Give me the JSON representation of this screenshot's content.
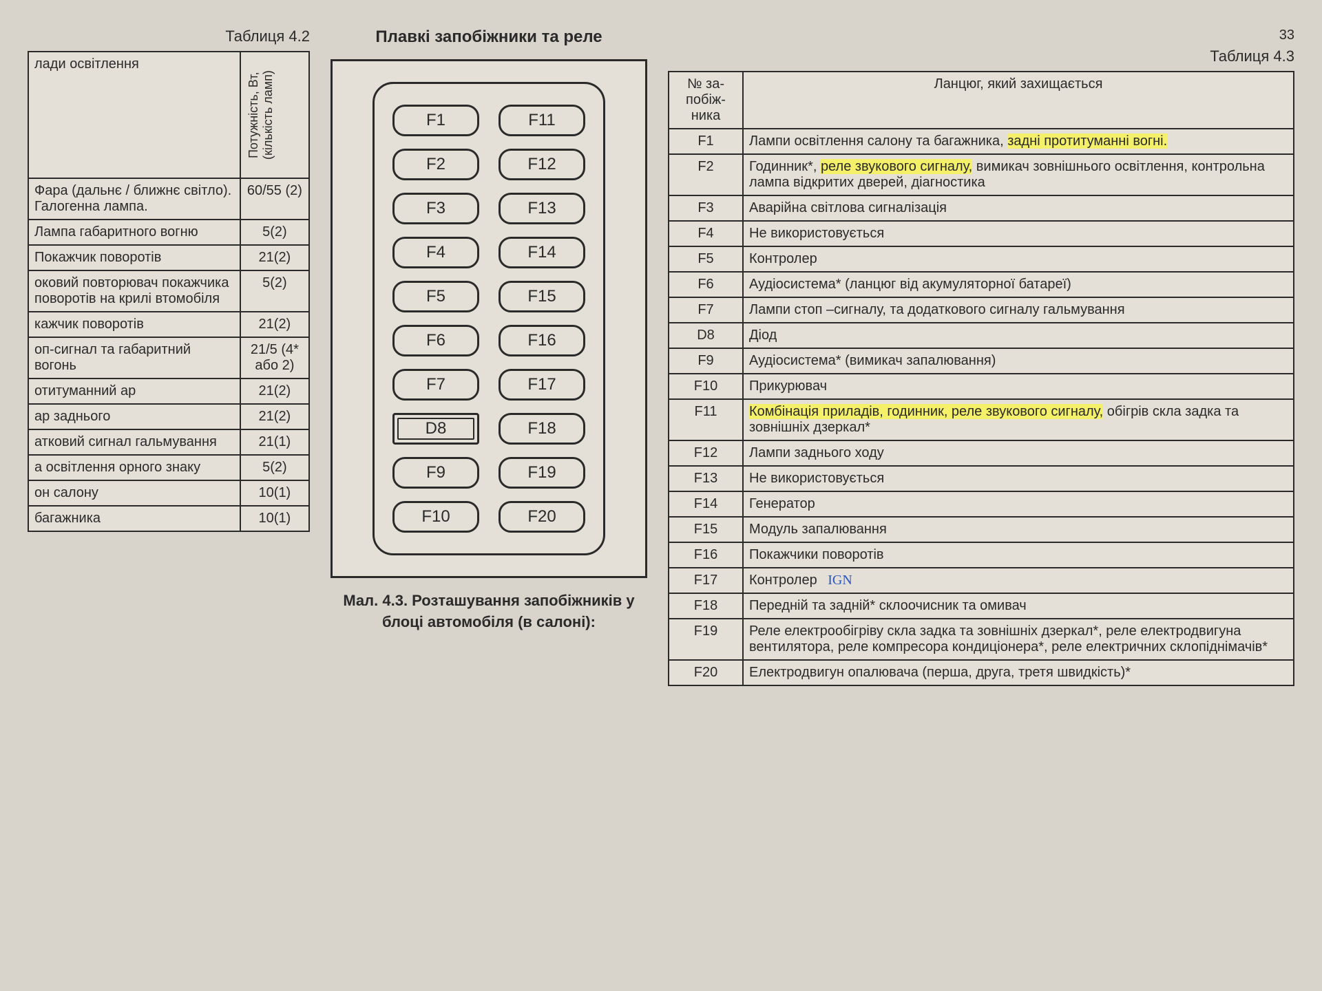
{
  "pageNumber": "33",
  "leftTable": {
    "label": "Таблиця 4.2",
    "header1": "лади освітлення",
    "header2": "Потужність, Вт, (кількість ламп)",
    "rows": [
      {
        "name": "Фара (дальнє / ближнє світло). Галогенна лампа.",
        "val": "60/55 (2)"
      },
      {
        "name": "Лампа габаритного вогню",
        "val": "5(2)"
      },
      {
        "name": "Покажчик поворотів",
        "val": "21(2)"
      },
      {
        "name": "оковий повторювач покажчика поворотів на крилі втомобіля",
        "val": "5(2)"
      },
      {
        "name": "кажчик поворотів",
        "val": "21(2)"
      },
      {
        "name": "оп-сигнал та габаритний вогонь",
        "val": "21/5 (4* або 2)"
      },
      {
        "name": "отитуманний ар",
        "val": "21(2)"
      },
      {
        "name": "ар заднього",
        "val": "21(2)"
      },
      {
        "name": "атковий сигнал гальмування",
        "val": "21(1)"
      },
      {
        "name": "а освітлення орного знаку",
        "val": "5(2)"
      },
      {
        "name": "он салону",
        "val": "10(1)"
      },
      {
        "name": "багажника",
        "val": "10(1)"
      }
    ]
  },
  "middle": {
    "title": "Плавкі запобіжники та реле",
    "fuses": [
      "F1",
      "F11",
      "F2",
      "F12",
      "F3",
      "F13",
      "F4",
      "F14",
      "F5",
      "F15",
      "F6",
      "F16",
      "F7",
      "F17",
      "D8",
      "F18",
      "F9",
      "F19",
      "F10",
      "F20"
    ],
    "diodeIndex": 14,
    "caption": "Мал. 4.3. Розташування запобіжників у блоці автомобіля (в салоні):"
  },
  "rightTable": {
    "label": "Таблиця 4.3",
    "header1": "№ за-побіж-ника",
    "header2": "Ланцюг, який захищається",
    "rows": [
      {
        "id": "F1",
        "txt": "Лампи освітлення салону та багажника, <span class='hl'>задні протитуманні вогні.</span>"
      },
      {
        "id": "F2",
        "txt": "Годинник*, <span class='hl'>реле звукового сигналу,</span> вимикач зовнішнього освітлення, контрольна лампа відкритих дверей, діагностика"
      },
      {
        "id": "F3",
        "txt": "Аварійна світлова сигналізація"
      },
      {
        "id": "F4",
        "txt": "Не використовується"
      },
      {
        "id": "F5",
        "txt": "Контролер"
      },
      {
        "id": "F6",
        "txt": "Аудіосистема* (ланцюг від акумуляторної батареї)"
      },
      {
        "id": "F7",
        "txt": "Лампи стоп –сигналу, та додаткового сигналу гальмування"
      },
      {
        "id": "D8",
        "txt": "Діод"
      },
      {
        "id": "F9",
        "txt": "Аудіосистема* (вимикач запалювання)"
      },
      {
        "id": "F10",
        "txt": "Прикурювач"
      },
      {
        "id": "F11",
        "txt": "<span class='hl'>Комбінація приладів, годинник, реле звукового сигналу,</span> обігрів скла задка та зовнішніх дзеркал*"
      },
      {
        "id": "F12",
        "txt": "Лампи заднього ходу"
      },
      {
        "id": "F13",
        "txt": "Не використовується"
      },
      {
        "id": "F14",
        "txt": "Генератор"
      },
      {
        "id": "F15",
        "txt": "Модуль запалювання"
      },
      {
        "id": "F16",
        "txt": "Покажчики поворотів"
      },
      {
        "id": "F17",
        "txt": "Контролер <span class='note'>IGN</span>"
      },
      {
        "id": "F18",
        "txt": "Передній та задній* склоочисник та омивач"
      },
      {
        "id": "F19",
        "txt": "Реле електрообігріву скла задка та зовнішніх дзеркал*, реле електродвигуна вентилятора, реле компресора кондиціонера*, реле електричних склопіднімачів*"
      },
      {
        "id": "F20",
        "txt": "Електродвигун опалювача (перша, друга, третя швидкість)*"
      }
    ]
  }
}
